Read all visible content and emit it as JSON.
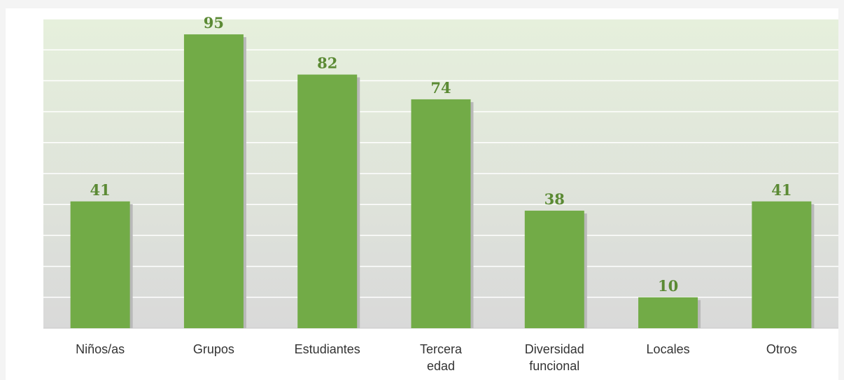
{
  "chart_data": {
    "type": "bar",
    "categories": [
      [
        "Niños/as"
      ],
      [
        "Grupos"
      ],
      [
        "Estudiantes"
      ],
      [
        "Tercera",
        "edad"
      ],
      [
        "Diversidad",
        "funcional"
      ],
      [
        "Locales"
      ],
      [
        "Otros"
      ]
    ],
    "values": [
      41,
      95,
      82,
      74,
      38,
      10,
      41
    ],
    "ylim": [
      0,
      100
    ],
    "grid": true,
    "legend": "none",
    "colors": {
      "bar": "#72ab47",
      "bar_shadow": "#b9b9b9",
      "value_label": "#5b8a34",
      "grid": "#ffffff",
      "plot_top": "#e6f0dc",
      "plot_bottom": "#d9d9d9",
      "page_background": "#f4f4f4",
      "panel_background": "#ffffff"
    }
  }
}
